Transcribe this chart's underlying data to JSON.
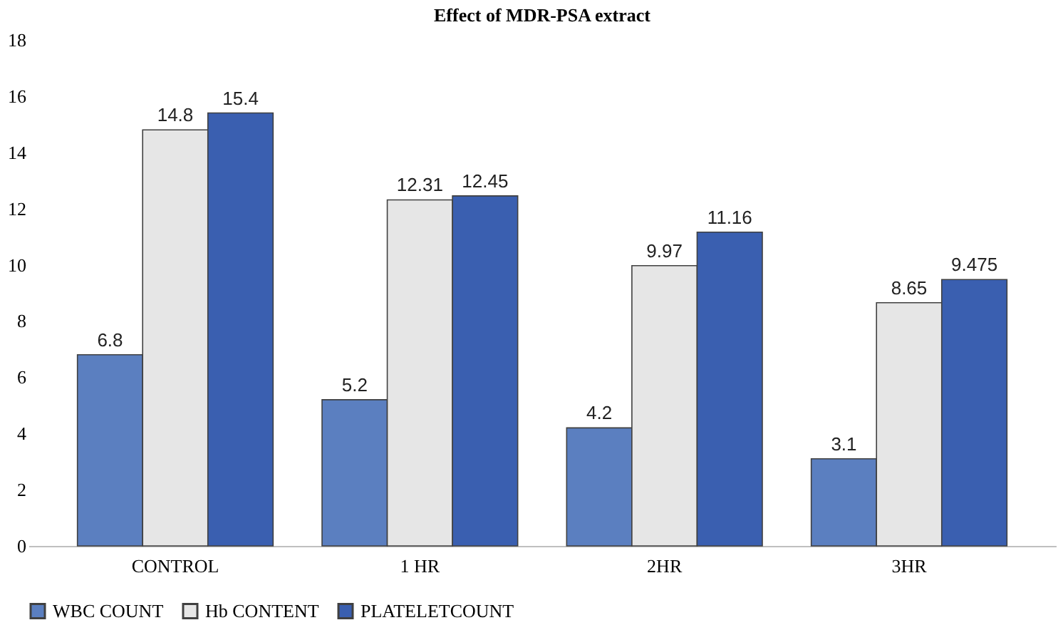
{
  "chart_data": {
    "type": "bar",
    "title": "Effect of MDR-PSA extract",
    "categories": [
      "CONTROL",
      "1 HR",
      "2HR",
      "3HR"
    ],
    "series": [
      {
        "name": "WBC COUNT",
        "color": "#5b7fc0",
        "values": [
          6.8,
          5.2,
          4.2,
          3.1
        ]
      },
      {
        "name": "Hb CONTENT",
        "color": "#e6e6e6",
        "values": [
          14.8,
          12.31,
          9.97,
          8.65
        ]
      },
      {
        "name": "PLATELETCOUNT",
        "color": "#3a5fb0",
        "values": [
          15.4,
          12.45,
          11.16,
          9.475
        ]
      }
    ],
    "ylim": [
      0,
      18
    ],
    "yticks": [
      0,
      2,
      4,
      6,
      8,
      10,
      12,
      14,
      16,
      18
    ],
    "grid": false,
    "legend": "bottom",
    "data_labels": true
  }
}
